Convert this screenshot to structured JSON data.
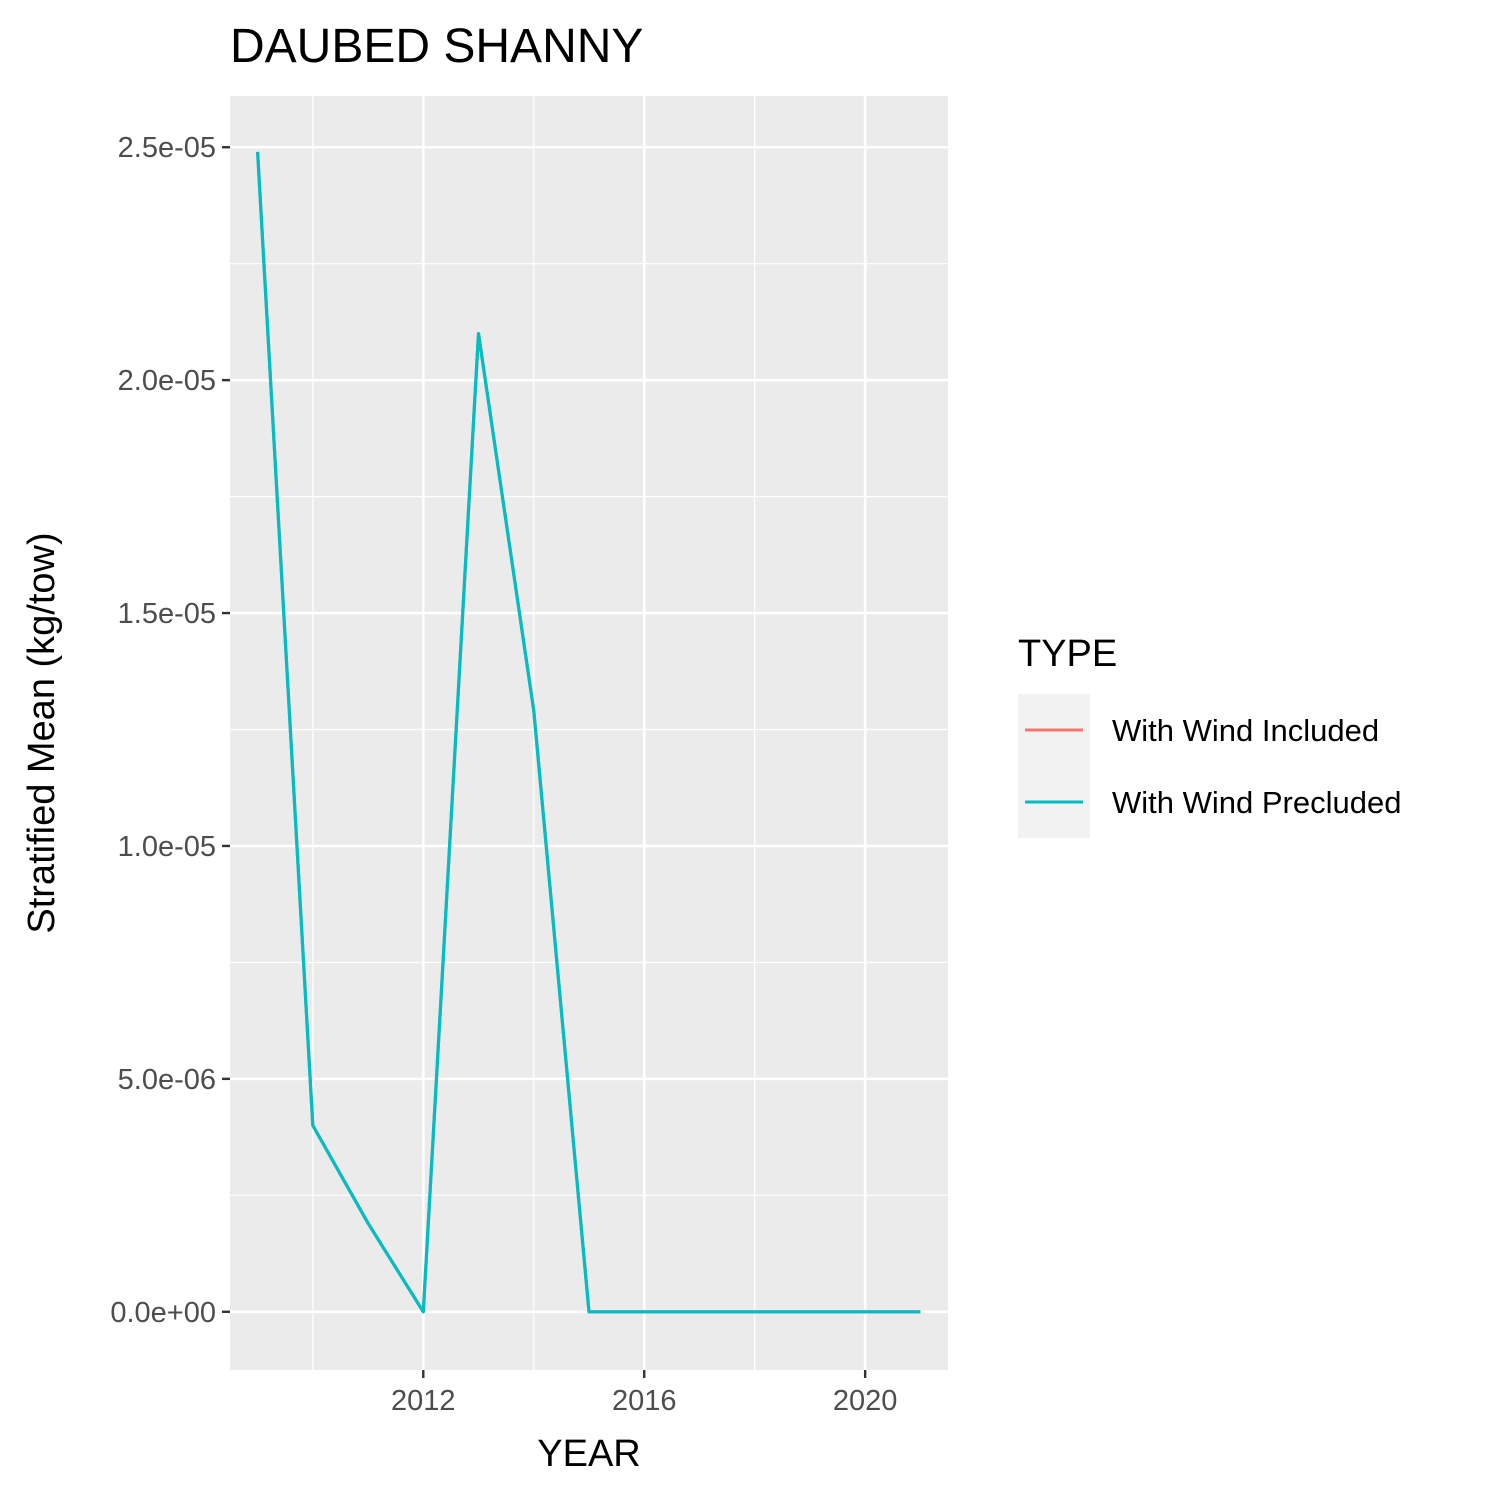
{
  "chart_data": {
    "type": "line",
    "title": "DAUBED SHANNY",
    "xlabel": "YEAR",
    "ylabel": "Stratified Mean (kg/tow)",
    "xlim": [
      2008.5,
      2021.5
    ],
    "ylim": [
      -1.25e-06,
      2.61e-05
    ],
    "x_ticks": [
      2012,
      2016,
      2020
    ],
    "x_tick_labels": [
      "2012",
      "2016",
      "2020"
    ],
    "x_minor_ticks": [
      2010,
      2014,
      2018
    ],
    "y_ticks": [
      0,
      5e-06,
      1e-05,
      1.5e-05,
      2e-05,
      2.5e-05
    ],
    "y_tick_labels": [
      "0.0e+00",
      "5.0e-06",
      "1.0e-05",
      "1.5e-05",
      "2.0e-05",
      "2.5e-05"
    ],
    "y_minor_ticks": [
      2.5e-06,
      7.5e-06,
      1.25e-05,
      1.75e-05,
      2.25e-05
    ],
    "grid": true,
    "legend": {
      "title": "TYPE",
      "placement": "right"
    },
    "series": [
      {
        "name": "With Wind Included",
        "color": "#F8766D",
        "x": [
          2009,
          2010,
          2011,
          2012,
          2013,
          2014,
          2015,
          2016,
          2017,
          2018,
          2019,
          2020,
          2021
        ],
        "y": [
          2.49e-05,
          4e-06,
          1.9e-06,
          0,
          2.1e-05,
          1.29e-05,
          0,
          0,
          0,
          0,
          0,
          0,
          0
        ]
      },
      {
        "name": "With Wind Precluded",
        "color": "#00BFC4",
        "x": [
          2009,
          2010,
          2011,
          2012,
          2013,
          2014,
          2015,
          2016,
          2017,
          2018,
          2019,
          2020,
          2021
        ],
        "y": [
          2.49e-05,
          4e-06,
          1.9e-06,
          0,
          2.1e-05,
          1.29e-05,
          0,
          0,
          0,
          0,
          0,
          0,
          0
        ]
      }
    ]
  }
}
